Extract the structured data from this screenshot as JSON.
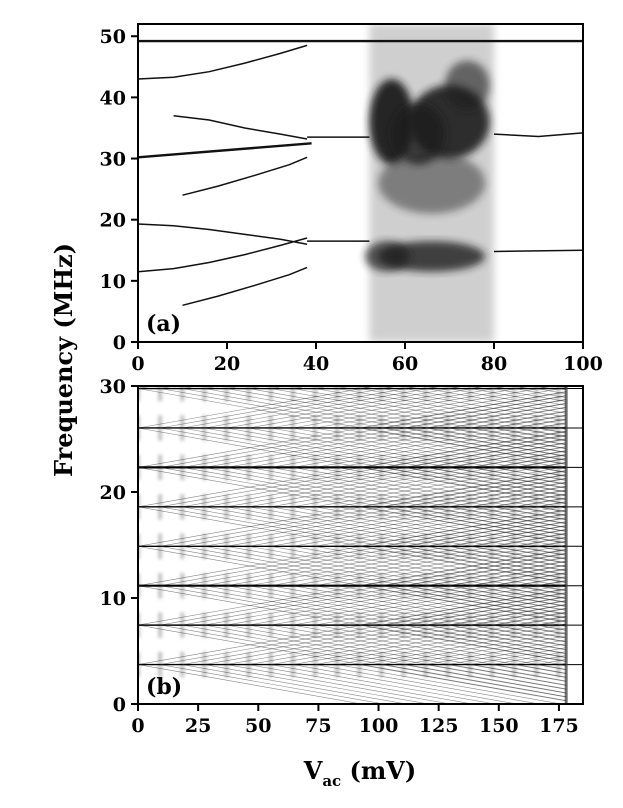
{
  "chart_data": [
    {
      "panel": "a",
      "type": "heatmap",
      "panel_label": "(a)",
      "xlim": [
        0,
        100
      ],
      "ylim": [
        0,
        52
      ],
      "xticks": [
        0,
        20,
        40,
        60,
        80,
        100
      ],
      "yticks": [
        0,
        10,
        20,
        30,
        40,
        50
      ],
      "xtick_labels": [
        "0",
        "20",
        "40",
        "60",
        "80",
        "100"
      ],
      "ytick_labels": [
        "0",
        "10",
        "20",
        "30",
        "40",
        "50"
      ],
      "dark_band": {
        "x": [
          52,
          80
        ],
        "y": [
          0,
          52
        ]
      },
      "series": [
        {
          "x": [
            0,
            100
          ],
          "y": [
            49.2,
            49.2
          ]
        },
        {
          "x": [
            0,
            39
          ],
          "y": [
            30.2,
            32.5
          ]
        },
        {
          "x": [
            0,
            8,
            16,
            24,
            32,
            38
          ],
          "y": [
            43,
            43.3,
            44.2,
            45.6,
            47.2,
            48.5
          ]
        },
        {
          "x": [
            0,
            8,
            16,
            24,
            32,
            38
          ],
          "y": [
            11.5,
            12,
            13,
            14.3,
            15.8,
            17
          ]
        },
        {
          "x": [
            0,
            8,
            16,
            24,
            32,
            38
          ],
          "y": [
            19.3,
            19,
            18.4,
            17.6,
            16.8,
            16
          ]
        },
        {
          "x": [
            8,
            16,
            24,
            32,
            38
          ],
          "y": [
            37,
            36.3,
            35,
            34,
            33.2
          ]
        },
        {
          "x": [
            10,
            18,
            26,
            34,
            38
          ],
          "y": [
            24,
            25.5,
            27.2,
            29,
            30.2
          ]
        },
        {
          "x": [
            10,
            18,
            26,
            34,
            38
          ],
          "y": [
            6,
            7.5,
            9.2,
            11,
            12.2
          ]
        },
        {
          "x": [
            38,
            52
          ],
          "y": [
            16.5,
            16.5
          ]
        },
        {
          "x": [
            38,
            52
          ],
          "y": [
            33.5,
            33.5
          ]
        },
        {
          "x": [
            80,
            100
          ],
          "y": [
            14.8,
            15
          ]
        },
        {
          "x": [
            80,
            90,
            100
          ],
          "y": [
            34,
            33.6,
            34.2
          ]
        }
      ]
    },
    {
      "panel": "b",
      "type": "line",
      "panel_label": "(b)",
      "xlim": [
        0,
        185
      ],
      "ylim": [
        0,
        30
      ],
      "xticks": [
        0,
        25,
        50,
        75,
        100,
        125,
        150,
        175
      ],
      "yticks": [
        0,
        10,
        20,
        30
      ],
      "xtick_labels": [
        "0",
        "25",
        "50",
        "75",
        "100",
        "125",
        "150",
        "175"
      ],
      "ytick_labels": [
        "0",
        "10",
        "20",
        "30"
      ],
      "xlabel_main": "V",
      "xlabel_sub": "ac",
      "xlabel_unit": " (mV)",
      "fundamental_frequency": 3.72,
      "harmonic_count": 8,
      "sideband_period_mV": 9.2,
      "sideband_slope_MHz_per_mV": 0.04,
      "endpoint_mV": 178
    }
  ],
  "ylabel": "Frequency (MHz)"
}
